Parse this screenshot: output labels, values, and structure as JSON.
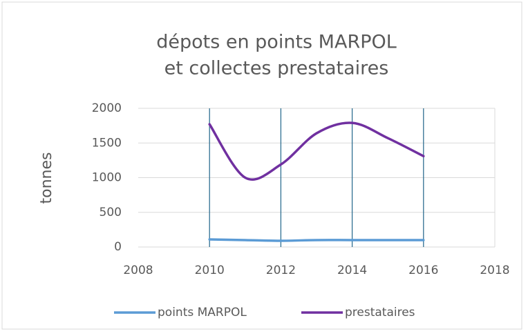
{
  "chart_data": {
    "type": "line",
    "title": [
      "dépots en points MARPOL",
      "et collectes prestataires"
    ],
    "y_label": "tonnes",
    "x": [
      2010,
      2011,
      2012,
      2013,
      2014,
      2015,
      2016
    ],
    "series": [
      {
        "name": "points MARPOL",
        "color": "#5b9bd5",
        "values": [
          110,
          100,
          90,
          100,
          100,
          100,
          100
        ]
      },
      {
        "name": "prestataires",
        "color": "#7030a0",
        "values": [
          1770,
          1000,
          1190,
          1640,
          1790,
          1570,
          1310
        ]
      }
    ],
    "xlim": [
      2008,
      2018
    ],
    "xticks": [
      2008,
      2010,
      2012,
      2014,
      2016,
      2018
    ],
    "ylim": [
      0,
      2000
    ],
    "yticks": [
      0,
      500,
      1000,
      1500,
      2000
    ],
    "grid": true,
    "legend": "bottom",
    "smooth": true
  }
}
